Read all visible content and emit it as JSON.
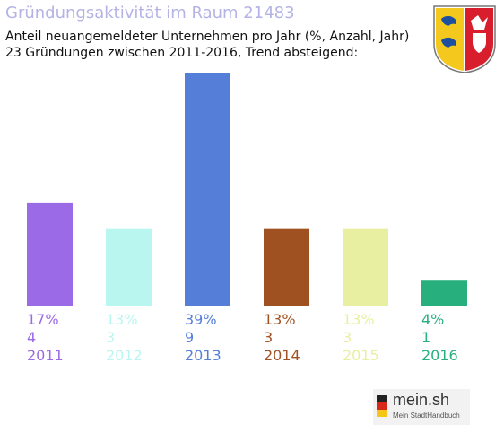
{
  "header": {
    "title": "Gründungsaktivität im Raum 21483",
    "subtitle_line1": "Anteil neuangemeldeter Unternehmen pro Jahr (%, Anzahl, Jahr)",
    "subtitle_line2": "23 Gründungen zwischen 2011-2016, Trend absteigend:"
  },
  "crest_icon": "coat-of-arms-schleswig-holstein",
  "logo": {
    "name": "mein.sh",
    "tagline": "Mein StadtHandbuch"
  },
  "chart_data": {
    "type": "bar",
    "title": "Gründungsaktivität im Raum 21483",
    "categories": [
      "2011",
      "2012",
      "2013",
      "2014",
      "2015",
      "2016"
    ],
    "values": [
      4,
      3,
      9,
      3,
      3,
      1
    ],
    "percent_labels": [
      "17%",
      "13%",
      "39%",
      "13%",
      "13%",
      "4%"
    ],
    "colors": [
      "#9b6ae6",
      "#baf6f0",
      "#547ed8",
      "#a05122",
      "#e8efa0",
      "#27b07d"
    ],
    "ylim": [
      0,
      9
    ],
    "grid": false,
    "legend": "none"
  }
}
